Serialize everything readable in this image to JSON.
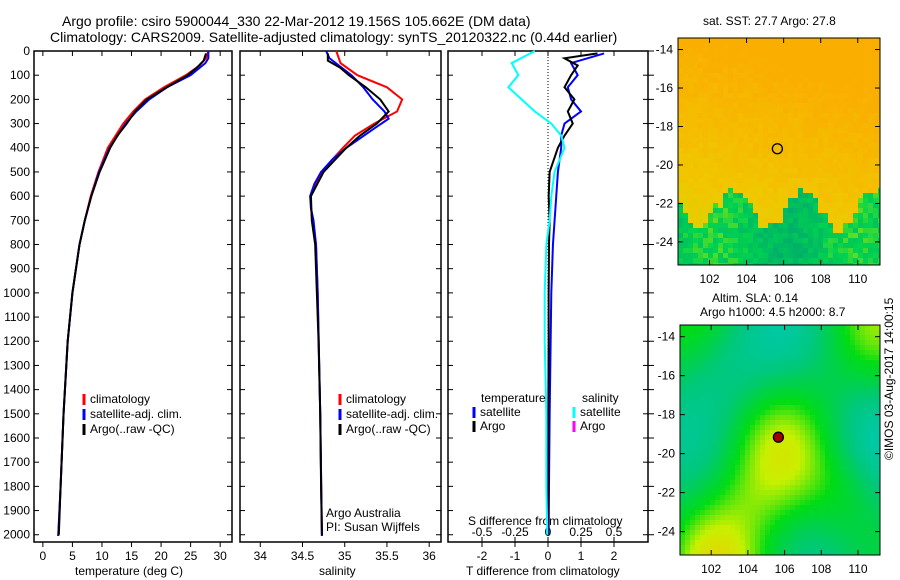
{
  "header": {
    "title1": "Argo profile: csiro 5900044_330 22-Mar-2012 19.156S 105.662E (DM data)",
    "title2": "Climatology: CARS2009. Satellite-adjusted climatology: synTS_20120322.nc (0.44d earlier)"
  },
  "credit": "©IMOS 03-Aug-2017 14:00:15",
  "colors": {
    "climatology": "#ff0000",
    "satellite": "#0000ff",
    "argo": "#000000",
    "s_satellite": "#00ffff",
    "s_argo": "#ff00ff"
  },
  "chart_data": [
    {
      "type": "line",
      "name": "temperature",
      "xlabel": "temperature (deg C)",
      "xlim": [
        -1.5,
        32
      ],
      "ylim": [
        2030,
        0
      ],
      "xticks": [
        0,
        5,
        10,
        15,
        20,
        25,
        30
      ],
      "yticks": [
        0,
        100,
        200,
        300,
        400,
        500,
        600,
        700,
        800,
        900,
        1000,
        1100,
        1200,
        1300,
        1400,
        1500,
        1600,
        1700,
        1800,
        1900,
        2000
      ],
      "legend": [
        "climatology",
        "satellite-adj. clim.",
        "Argo(..raw -QC)"
      ],
      "series": [
        {
          "name": "climatology",
          "depth": [
            0,
            30,
            60,
            100,
            150,
            200,
            250,
            300,
            400,
            500,
            600,
            700,
            800,
            1000,
            1200,
            1500,
            1800,
            2050
          ],
          "values": [
            28,
            27.6,
            26.5,
            24.2,
            20.5,
            17.3,
            15.3,
            13.6,
            11,
            9.4,
            8.1,
            7.1,
            6.2,
            5,
            4.2,
            3.5,
            3,
            2.6
          ]
        },
        {
          "name": "satellite",
          "depth": [
            0,
            30,
            50,
            100,
            150,
            200,
            250,
            300,
            400,
            500,
            600,
            700,
            800,
            1000,
            1200,
            1500,
            1800,
            2050
          ],
          "values": [
            28,
            28,
            27.5,
            25,
            21,
            18,
            15.8,
            14,
            11.3,
            9.5,
            8.2,
            7.1,
            6.2,
            5,
            4.2,
            3.5,
            3,
            2.6
          ]
        },
        {
          "name": "argo",
          "depth": [
            10,
            40,
            70,
            100,
            150,
            200,
            250,
            300,
            350,
            400,
            500,
            600,
            700,
            800,
            1000,
            1200,
            1500,
            1800,
            2000
          ],
          "values": [
            27.6,
            27.2,
            26,
            24.5,
            21,
            17.6,
            15.6,
            14.2,
            12.6,
            11.4,
            9.6,
            8.2,
            7.1,
            6.2,
            5,
            4.2,
            3.5,
            3,
            2.7
          ]
        }
      ]
    },
    {
      "type": "line",
      "name": "salinity",
      "xlabel": "salinity",
      "xlim": [
        33.76,
        36.14
      ],
      "ylim": [
        2030,
        0
      ],
      "xticks": [
        34,
        34.5,
        35,
        35.5,
        36
      ],
      "legend": [
        "climatology",
        "satellite-adj. clim.",
        "Argo(..raw -QC)"
      ],
      "annotation": [
        "Argo Australia",
        "PI: Susan Wijffels"
      ],
      "series": [
        {
          "name": "climatology",
          "depth": [
            0,
            50,
            100,
            150,
            200,
            250,
            300,
            350,
            400,
            450,
            500,
            550,
            600,
            650,
            700,
            800,
            1000,
            1500,
            2050
          ],
          "values": [
            34.9,
            34.95,
            35.15,
            35.5,
            35.68,
            35.62,
            35.35,
            35.12,
            34.98,
            34.85,
            34.73,
            34.65,
            34.6,
            34.6,
            34.62,
            34.66,
            34.68,
            34.71,
            34.73
          ]
        },
        {
          "name": "satellite",
          "depth": [
            0,
            30,
            100,
            150,
            200,
            250,
            280,
            320,
            400,
            450,
            500,
            550,
            600,
            650,
            700,
            800,
            1000,
            1500,
            2050
          ],
          "values": [
            34.78,
            34.82,
            35.08,
            35.22,
            35.33,
            35.47,
            35.52,
            35.35,
            35.02,
            34.85,
            34.72,
            34.64,
            34.59,
            34.6,
            34.63,
            34.66,
            34.68,
            34.71,
            34.73
          ]
        },
        {
          "name": "argo",
          "depth": [
            10,
            40,
            70,
            100,
            150,
            200,
            250,
            300,
            350,
            400,
            500,
            600,
            700,
            800,
            1000,
            1200,
            1500,
            1800,
            2000
          ],
          "values": [
            34.8,
            34.8,
            34.95,
            35.05,
            35.25,
            35.42,
            35.52,
            35.38,
            35.18,
            35.02,
            34.75,
            34.6,
            34.61,
            34.65,
            34.67,
            34.69,
            34.71,
            34.72,
            34.73
          ]
        }
      ]
    },
    {
      "type": "line",
      "name": "difference",
      "xlabel": "T difference from climatology",
      "xlabel2": "S difference from climatology",
      "xlim": [
        -3.03,
        3.03
      ],
      "ylim": [
        2030,
        0
      ],
      "xticks": [
        -2,
        -1,
        0,
        1,
        2
      ],
      "xticks2": [
        "-0.5",
        "-0.25",
        "0",
        "0.25",
        "0.5"
      ],
      "legend_temperature": {
        "title": "temperature",
        "items": [
          "satellite",
          "Argo"
        ]
      },
      "legend_salinity": {
        "title": "salinity",
        "items": [
          "satellite",
          "Argo"
        ]
      },
      "series": [
        {
          "name": "T satellite",
          "depth": [
            10,
            50,
            100,
            150,
            200,
            250,
            300,
            350,
            400,
            500,
            600,
            700,
            800,
            1000,
            1200,
            1500,
            1800,
            2000
          ],
          "values": [
            1.7,
            0.7,
            0.9,
            0.6,
            0.7,
            1.0,
            0.5,
            0.4,
            0.4,
            0.3,
            0.25,
            0.2,
            0.15,
            0.1,
            0.08,
            0.05,
            0.03,
            0.02
          ]
        },
        {
          "name": "T argo",
          "depth": [
            10,
            30,
            60,
            100,
            150,
            200,
            250,
            300,
            350,
            400,
            500,
            600,
            700,
            800,
            1000,
            1200,
            1500,
            1800,
            2000
          ],
          "values": [
            1.5,
            0.5,
            0.9,
            0.7,
            0.5,
            0.8,
            0.6,
            0.75,
            0.5,
            0.3,
            0.05,
            0.02,
            0.05,
            0.03,
            0.02,
            0.02,
            0.01,
            0.01,
            0.0
          ]
        },
        {
          "name": "S satellite",
          "depth": [
            0,
            50,
            100,
            150,
            200,
            250,
            300,
            350,
            400,
            500,
            600,
            700,
            800,
            1000,
            1200,
            1500,
            1800,
            2000
          ],
          "values": [
            -0.4,
            -1.1,
            -0.9,
            -1.2,
            -0.8,
            -0.4,
            0.1,
            0.4,
            0.5,
            0.2,
            0.1,
            0.05,
            -0.05,
            -0.1,
            -0.1,
            -0.05,
            -0.05,
            -0.02
          ]
        }
      ]
    },
    {
      "type": "heatmap",
      "name": "SST map",
      "title": "sat. SST: 27.7 Argo: 27.8",
      "xticks": [
        "102",
        "104",
        "106",
        "108",
        "110"
      ],
      "yticks": [
        "-14",
        "-16",
        "-18",
        "-20",
        "-22",
        "-24"
      ],
      "xlim": [
        100.3,
        111.2
      ],
      "ylim": [
        -25.2,
        -13.4
      ],
      "marker": {
        "lon": 105.662,
        "lat": -19.156
      }
    },
    {
      "type": "heatmap",
      "name": "SLA map",
      "title1": "Altim. SLA: 0.14",
      "title2": "Argo h1000: 4.5 h2000: 8.7",
      "xticks": [
        "102",
        "104",
        "106",
        "108",
        "110"
      ],
      "yticks": [
        "-14",
        "-16",
        "-18",
        "-20",
        "-22",
        "-24"
      ],
      "xlim": [
        100.3,
        111.2
      ],
      "ylim": [
        -25.2,
        -13.4
      ],
      "marker": {
        "lon": 105.662,
        "lat": -19.156
      }
    }
  ]
}
